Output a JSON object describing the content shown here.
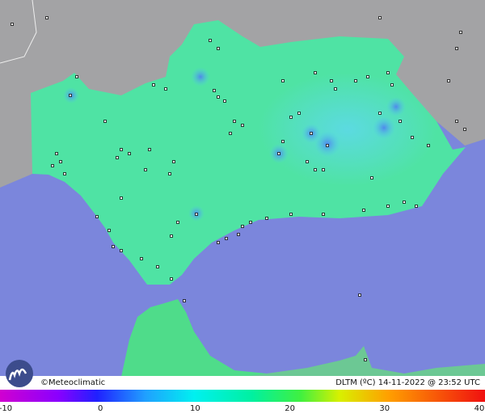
{
  "credit": "©Meteoclimatic",
  "caption": "DLTM (ºC) 14-11-2022 @ 23:52 UTC",
  "color_scale": {
    "ticks": [
      -10,
      0,
      10,
      20,
      30,
      40
    ]
  }
}
